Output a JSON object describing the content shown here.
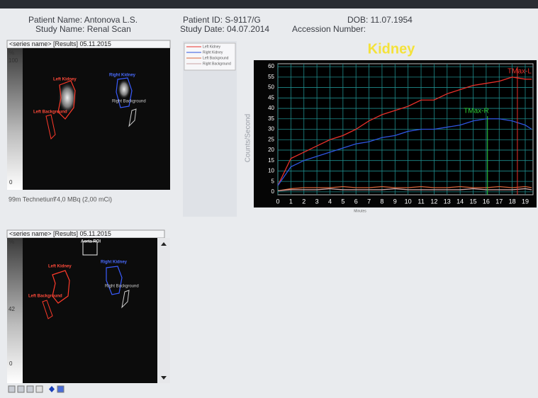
{
  "header": {
    "patient_name": "Patient Name: Antonova L.S.",
    "study_name": "Study Name: Renal Scan",
    "patient_id": "Patient ID: S-9117/G",
    "study_date": "Study Date: 04.07.2014",
    "dob": "DOB: 11.07.1954",
    "accession": "Accession Number:"
  },
  "panel_top": {
    "title": "<series name> [Results] 05.11.2015",
    "scale_unit": "%",
    "scale_max": "100",
    "scale_min": "0",
    "rois": {
      "left_kidney": "Left Kidney",
      "right_kidney": "Right Kidney",
      "left_background": "Left Background",
      "right_background": "Right Background"
    },
    "isotope": "99m Technetium",
    "dose": "74,0 MBq (2,00 mCi)"
  },
  "panel_bottom": {
    "title": "<series name> [Results] 05.11.2015",
    "scale_unit": "%",
    "scale_max": "42",
    "scale_min": "0",
    "aorta": "Aorta ROI",
    "rois": {
      "left_kidney": "Left Kidney",
      "right_kidney": "Right Kidney",
      "left_background": "Left Background",
      "right_background": "Right Background"
    }
  },
  "chart_data": {
    "type": "line",
    "title": "Kidney",
    "y_label": "Counts/Second",
    "x_label": "Minutes",
    "x": [
      0,
      1,
      2,
      3,
      4,
      5,
      6,
      7,
      8,
      9,
      10,
      11,
      12,
      13,
      14,
      15,
      16,
      17,
      18,
      19,
      19.5
    ],
    "series": [
      {
        "name": "Left Kidney",
        "color": "#e8302a",
        "values": [
          3,
          16,
          19,
          22,
          25,
          27,
          30,
          34,
          37,
          39,
          41,
          44,
          44,
          47,
          49,
          51,
          52,
          53,
          55,
          54,
          54
        ]
      },
      {
        "name": "Right Kidney",
        "color": "#2f55e0",
        "values": [
          3,
          12,
          15,
          17,
          19,
          21,
          23,
          24,
          26,
          27,
          29,
          30,
          30,
          31,
          32,
          34,
          35,
          35,
          34,
          32,
          30
        ]
      },
      {
        "name": "Left Background",
        "color": "#d8643a",
        "values": [
          0.5,
          1.5,
          2,
          2,
          2,
          2.5,
          2,
          2,
          2.5,
          2,
          2,
          2.5,
          2,
          2,
          2.5,
          2,
          2,
          2.5,
          2,
          2.5,
          2
        ]
      },
      {
        "name": "Right Background",
        "color": "#c9a3a3",
        "values": [
          0.5,
          1,
          1,
          1,
          1.5,
          1,
          1,
          1,
          1,
          1.5,
          1,
          1,
          1,
          1,
          1,
          1.5,
          1,
          1,
          1,
          1.5,
          1
        ]
      }
    ],
    "markers": [
      {
        "label": "TMax-L",
        "x": 18.4,
        "color": "#e8302a"
      },
      {
        "label": "TMax-R",
        "x": 16.1,
        "color": "#2fd13a"
      }
    ],
    "xlim": [
      0,
      19.6
    ],
    "ylim": [
      -1.4,
      61.4
    ],
    "xticks": [
      0,
      1,
      2,
      3,
      4,
      5,
      6,
      7,
      8,
      9,
      10,
      11,
      12,
      13,
      14,
      15,
      16,
      17,
      18,
      19
    ],
    "yticks": [
      0,
      5,
      10,
      15,
      20,
      25,
      30,
      35,
      40,
      45,
      50,
      55,
      60
    ],
    "grid": true
  }
}
